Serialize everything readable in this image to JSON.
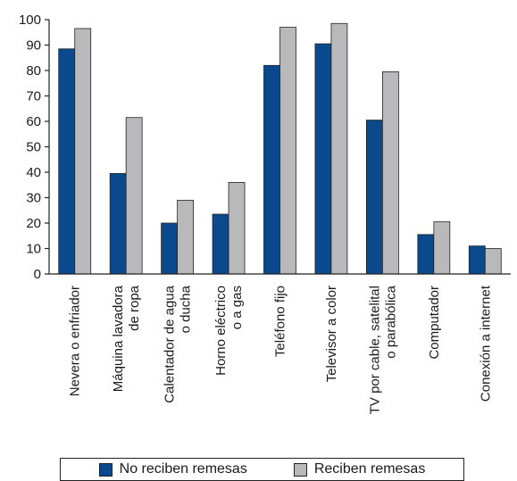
{
  "chart_data": {
    "type": "bar",
    "categories": [
      [
        "Nevera o enfriador"
      ],
      [
        "Máquina lavadora",
        "de ropa"
      ],
      [
        "Calentador de agua",
        "o ducha"
      ],
      [
        "Horno eléctrico",
        "o a gas"
      ],
      [
        "Teléfono fijo"
      ],
      [
        "Televisor a color"
      ],
      [
        "TV por cable, satelital",
        "o parabólica"
      ],
      [
        "Computador"
      ],
      [
        "Conexión a internet"
      ]
    ],
    "series": [
      {
        "name": "No reciben remesas",
        "color": "#0a4a8c",
        "values": [
          88.5,
          39.5,
          20,
          23.5,
          82,
          90.5,
          60.5,
          15.5,
          11
        ]
      },
      {
        "name": "Reciben remesas",
        "color": "#b9b9bb",
        "values": [
          96.5,
          61.5,
          29,
          36,
          97,
          98.5,
          79.5,
          20.5,
          10
        ]
      }
    ],
    "ylim": [
      0,
      100
    ],
    "yticks": [
      0,
      10,
      20,
      30,
      40,
      50,
      60,
      70,
      80,
      90,
      100
    ],
    "grid": false,
    "legend_position": "bottom"
  }
}
